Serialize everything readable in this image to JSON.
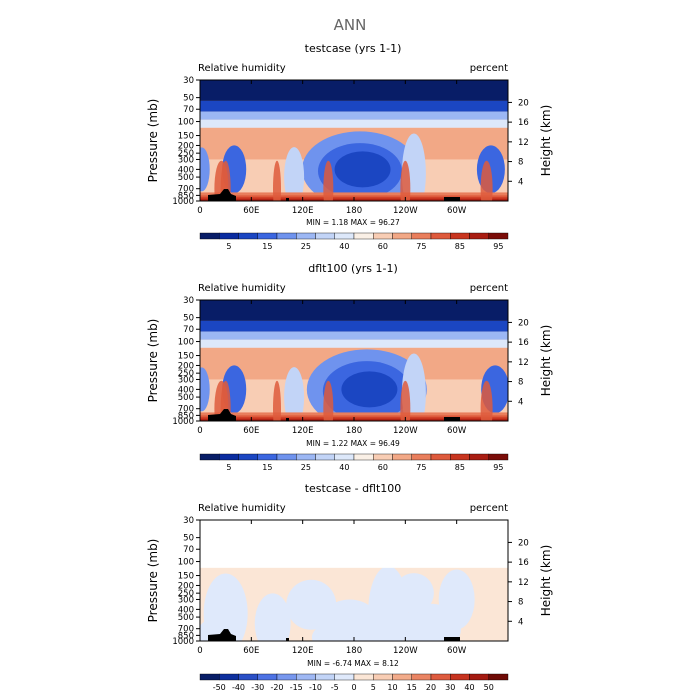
{
  "figure_title": "ANN",
  "colors": {
    "abs_levels_colors": [
      "#081d67",
      "#0a2ca0",
      "#1b46c2",
      "#3b66e0",
      "#6f93ee",
      "#9cb7f4",
      "#c2d4f7",
      "#dde8fa",
      "#faf0e6",
      "#f8cdb4",
      "#f2a886",
      "#e97e5c",
      "#de5a3c",
      "#c8351f",
      "#a91d12",
      "#7a0c08"
    ],
    "diff_levels_colors": [
      "#081d67",
      "#0d2f9e",
      "#2a4fc6",
      "#4d72e4",
      "#7797ee",
      "#9fb8f4",
      "#c2d4f7",
      "#dfe9fb",
      "#fbe6d6",
      "#f8cdb4",
      "#f2ab8a",
      "#ea8463",
      "#de5b3e",
      "#c7331f",
      "#a41a10",
      "#6f0a06"
    ],
    "terrain": "#000000"
  },
  "chart_data": [
    {
      "type": "heatmap",
      "title": "testcase (yrs 1-1)",
      "left_label": "Relative humidity",
      "right_label": "percent",
      "ylabel": "Pressure (mb)",
      "ylabel_right": "Height (km)",
      "x_ticks": [
        "0",
        "60E",
        "120E",
        "180",
        "120W",
        "60W"
      ],
      "y_ticks": [
        "1000",
        "850",
        "700",
        "500",
        "400",
        "300",
        "250",
        "200",
        "150",
        "100",
        "70",
        "50",
        "30"
      ],
      "y_ticks_right": [
        "20",
        "16",
        "12",
        "8",
        "4"
      ],
      "stats": "MIN =    1.18   MAX =   96.27",
      "min": 1.18,
      "max": 96.27,
      "levels": [
        "5",
        "15",
        "25",
        "40",
        "60",
        "75",
        "85",
        "95"
      ],
      "dry_regions": [
        {
          "lon": 187,
          "p": 400,
          "rx": 58,
          "ry": 38,
          "level": 4
        },
        {
          "lon": 187,
          "p": 420,
          "rx": 42,
          "ry": 28,
          "level": 3
        },
        {
          "lon": 190,
          "p": 400,
          "rx": 28,
          "ry": 18,
          "level": 2
        },
        {
          "lon": 40,
          "p": 400,
          "rx": 12,
          "ry": 24,
          "level": 3
        },
        {
          "lon": 340,
          "p": 400,
          "rx": 14,
          "ry": 24,
          "level": 3
        },
        {
          "lon": 2,
          "p": 400,
          "rx": 8,
          "ry": 22,
          "level": 4
        },
        {
          "lon": 110,
          "p": 500,
          "rx": 10,
          "ry": 30,
          "level": 6
        },
        {
          "lon": 250,
          "p": 450,
          "rx": 12,
          "ry": 40,
          "level": 6
        }
      ]
    },
    {
      "type": "heatmap",
      "title": "dflt100 (yrs 1-1)",
      "left_label": "Relative humidity",
      "right_label": "percent",
      "ylabel": "Pressure (mb)",
      "ylabel_right": "Height (km)",
      "x_ticks": [
        "0",
        "60E",
        "120E",
        "180",
        "120W",
        "60W"
      ],
      "y_ticks": [
        "1000",
        "850",
        "700",
        "500",
        "400",
        "300",
        "250",
        "200",
        "150",
        "100",
        "70",
        "50",
        "30"
      ],
      "y_ticks_right": [
        "20",
        "16",
        "12",
        "8",
        "4"
      ],
      "stats": "MIN =    1.22   MAX =   96.49",
      "min": 1.22,
      "max": 96.49,
      "levels": [
        "5",
        "15",
        "25",
        "40",
        "60",
        "75",
        "85",
        "95"
      ],
      "dry_regions": [
        {
          "lon": 195,
          "p": 400,
          "rx": 60,
          "ry": 40,
          "level": 4
        },
        {
          "lon": 195,
          "p": 420,
          "rx": 44,
          "ry": 30,
          "level": 3
        },
        {
          "lon": 198,
          "p": 400,
          "rx": 28,
          "ry": 18,
          "level": 2
        },
        {
          "lon": 40,
          "p": 400,
          "rx": 12,
          "ry": 24,
          "level": 3
        },
        {
          "lon": 345,
          "p": 400,
          "rx": 14,
          "ry": 24,
          "level": 3
        },
        {
          "lon": 2,
          "p": 400,
          "rx": 8,
          "ry": 22,
          "level": 4
        },
        {
          "lon": 110,
          "p": 500,
          "rx": 10,
          "ry": 30,
          "level": 6
        },
        {
          "lon": 250,
          "p": 450,
          "rx": 12,
          "ry": 40,
          "level": 6
        }
      ]
    },
    {
      "type": "heatmap",
      "title": "testcase - dflt100",
      "left_label": "Relative humidity",
      "right_label": "percent",
      "ylabel": "Pressure (mb)",
      "ylabel_right": "Height (km)",
      "x_ticks": [
        "0",
        "60E",
        "120E",
        "180",
        "120W",
        "60W"
      ],
      "y_ticks": [
        "1000",
        "850",
        "700",
        "500",
        "400",
        "300",
        "250",
        "200",
        "150",
        "100",
        "70",
        "50",
        "30"
      ],
      "y_ticks_right": [
        "20",
        "16",
        "12",
        "8",
        "4"
      ],
      "stats": "MIN =   -6.74   MAX =    8.12",
      "min": -6.74,
      "max": 8.12,
      "levels": [
        "-50",
        "-40",
        "-30",
        "-20",
        "-15",
        "-10",
        "-5",
        "0",
        "5",
        "10",
        "15",
        "20",
        "30",
        "40",
        "50"
      ],
      "dry_regions": []
    }
  ]
}
